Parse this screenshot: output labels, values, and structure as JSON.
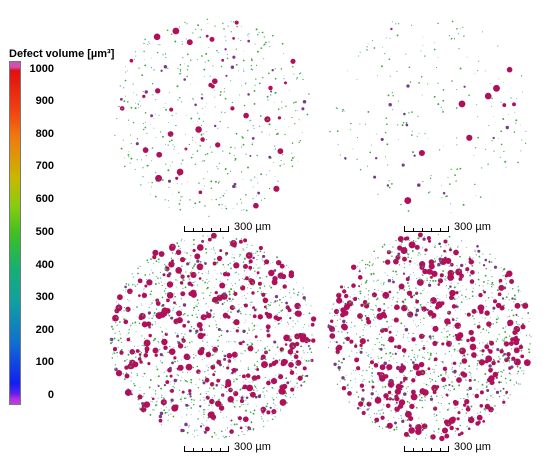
{
  "legend": {
    "title": "Defect volume [µm³]",
    "ticks": [
      "1000",
      "900",
      "800",
      "700",
      "600",
      "500",
      "400",
      "300",
      "200",
      "100",
      "0"
    ],
    "color_stops": [
      "#d24fb4",
      "#e01010",
      "#f07a10",
      "#c8b800",
      "#40c020",
      "#10a0a0",
      "#1070d0",
      "#1020f0",
      "#c040e0"
    ]
  },
  "panels": [
    {
      "id": "top-left",
      "density": "medium",
      "scale_label": "300 µm"
    },
    {
      "id": "top-right",
      "density": "sparse",
      "scale_label": "300 µm"
    },
    {
      "id": "bottom-left",
      "density": "dense",
      "scale_label": "300 µm"
    },
    {
      "id": "bottom-right",
      "density": "dense",
      "scale_label": "300 µm"
    }
  ],
  "colors": {
    "large_defect": "#b0105a",
    "medium_defect": "#7a3a8a",
    "small_defect": "#40a840",
    "tiny_defect": "#6aa8c0"
  }
}
